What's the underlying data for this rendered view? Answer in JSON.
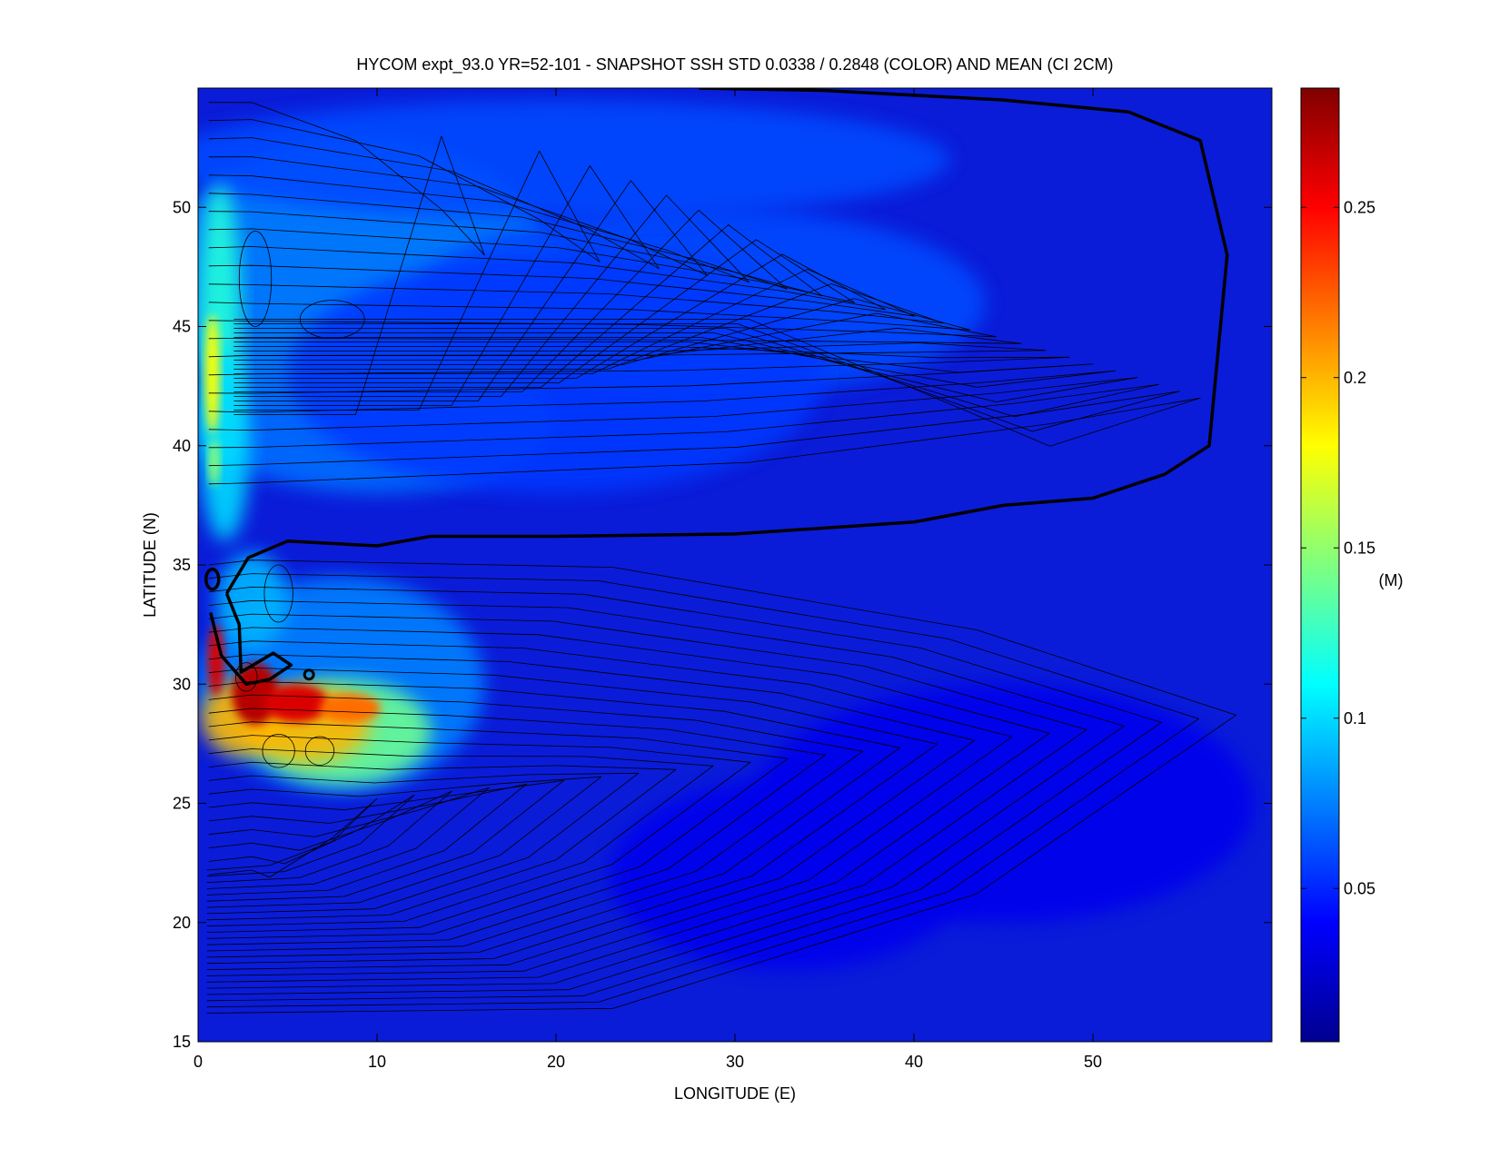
{
  "chart_data": {
    "type": "heatmap",
    "title": "HYCOM expt_93.0 YR=52-101 - SNAPSHOT SSH STD 0.0338 / 0.2848 (COLOR) AND MEAN (CI 2CM)",
    "xlabel": "LONGITUDE (E)",
    "ylabel": "LATITUDE (N)",
    "xlim": [
      0,
      60
    ],
    "ylim": [
      15,
      55
    ],
    "xticks": [
      0,
      10,
      20,
      30,
      40,
      50
    ],
    "yticks": [
      15,
      20,
      25,
      30,
      35,
      40,
      45,
      50
    ],
    "grid": false,
    "colorbar": {
      "label": "(M)",
      "range": [
        0.005,
        0.285
      ],
      "ticks": [
        0.05,
        0.1,
        0.15,
        0.2,
        0.25
      ],
      "tick_labels": [
        "0.05",
        "0.1",
        "0.15",
        "0.2",
        "0.25"
      ],
      "colormap": "jet"
    },
    "std_min": 0.0338,
    "std_max": 0.2848,
    "contour_interval_cm": 2,
    "features": [
      {
        "kind": "std-max",
        "lon": 3.5,
        "lat": 29.5,
        "value": 0.28
      },
      {
        "kind": "std-jet",
        "lon": 8,
        "lat": 29,
        "value": 0.22
      },
      {
        "kind": "std-boundary",
        "lon": 0.8,
        "lat": 43,
        "value": 0.18
      },
      {
        "kind": "zero-contour-path",
        "points": [
          [
            1.6,
            33.8
          ],
          [
            2.8,
            35.3
          ],
          [
            5,
            36
          ],
          [
            10,
            35.8
          ],
          [
            13,
            36.2
          ],
          [
            20,
            36.2
          ],
          [
            30,
            36.3
          ],
          [
            40,
            36.8
          ],
          [
            45,
            37.5
          ],
          [
            50,
            37.8
          ],
          [
            54,
            38.8
          ],
          [
            56.5,
            40
          ],
          [
            57.5,
            48
          ],
          [
            56,
            52.8
          ],
          [
            52,
            54
          ],
          [
            45,
            54.5
          ],
          [
            35,
            54.9
          ],
          [
            28,
            55
          ]
        ]
      },
      {
        "kind": "zero-contour-hook",
        "points": [
          [
            1.6,
            33.8
          ],
          [
            2.3,
            32.5
          ],
          [
            2.4,
            30.5
          ],
          [
            4.2,
            31.3
          ],
          [
            5.2,
            30.8
          ],
          [
            4,
            30.2
          ],
          [
            2.7,
            30
          ],
          [
            1.3,
            31.2
          ],
          [
            0.7,
            33
          ]
        ]
      },
      {
        "kind": "zero-contour-ring",
        "lon": 0.8,
        "lat": 34.4
      }
    ]
  }
}
